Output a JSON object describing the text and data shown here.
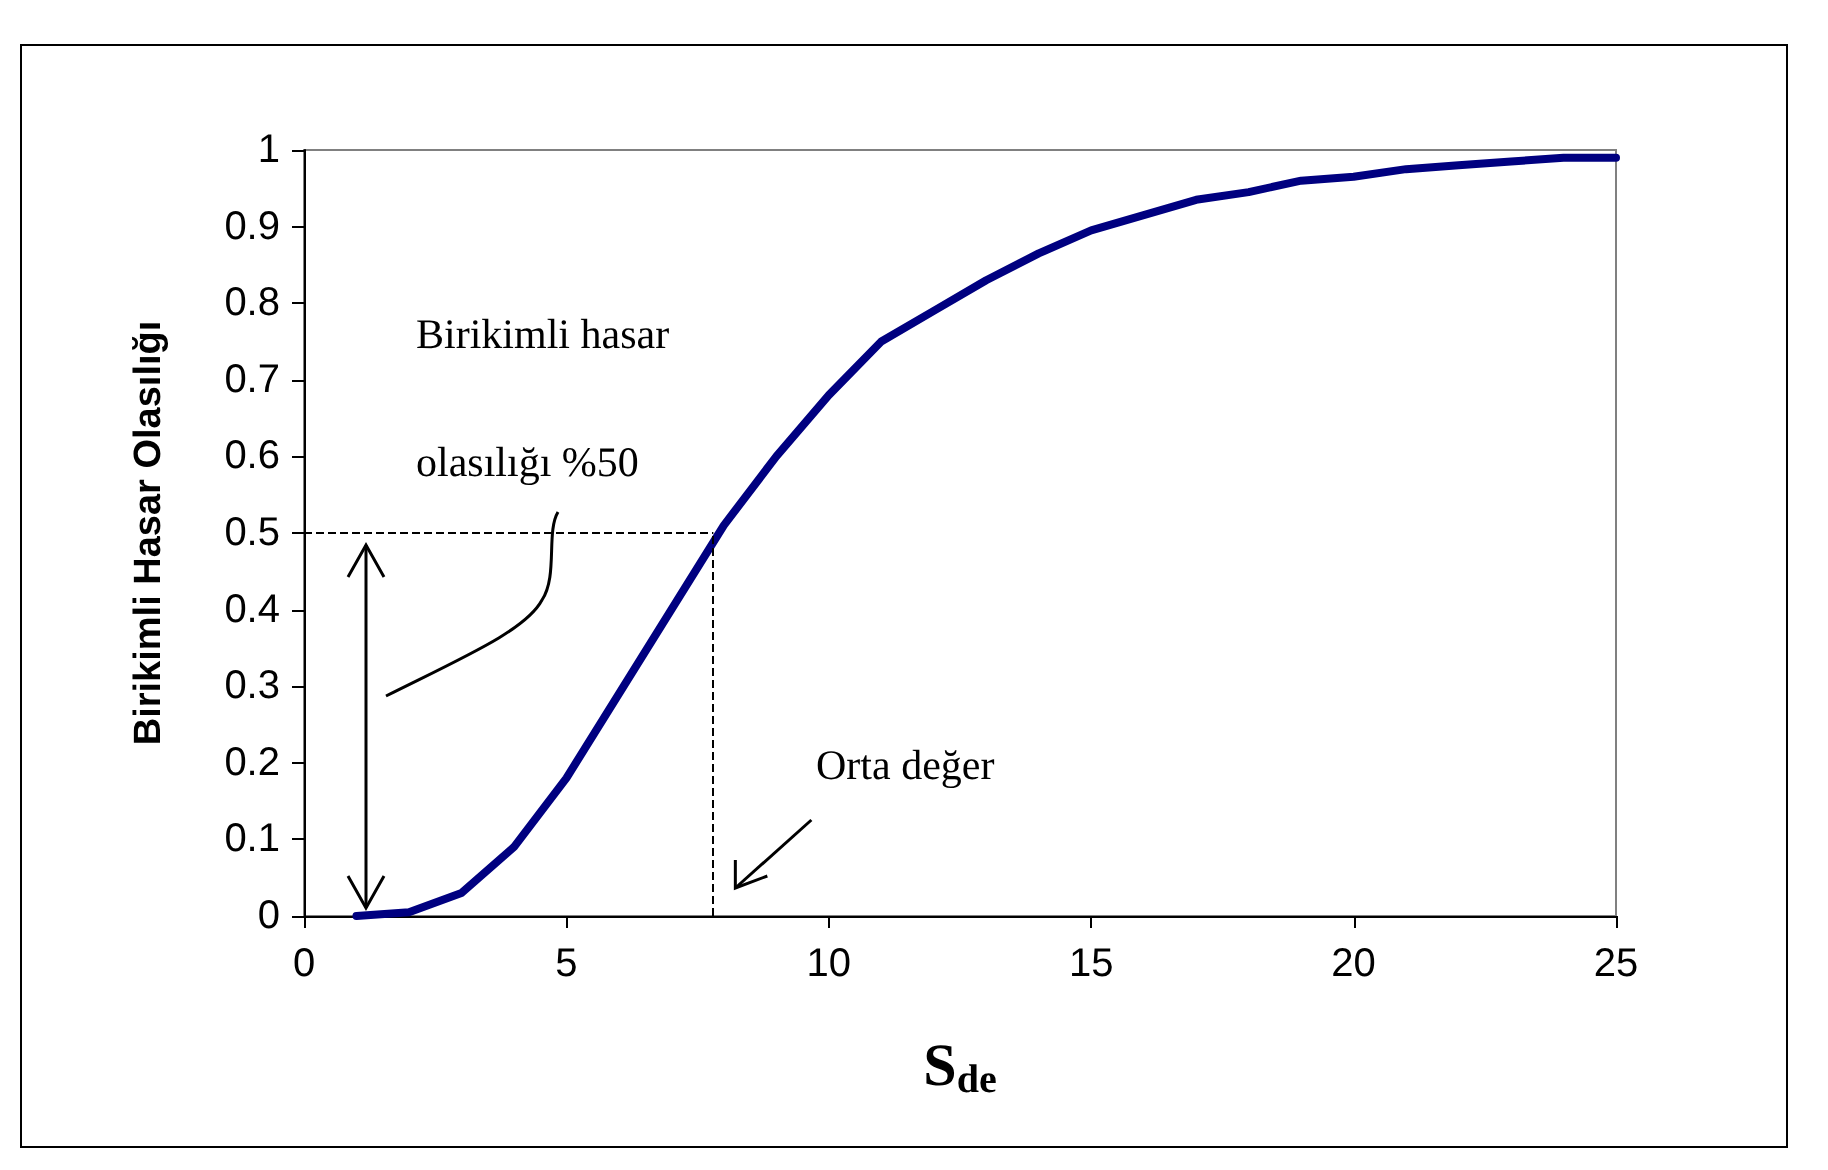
{
  "chart_data": {
    "type": "line",
    "xlabel": "S$_{de}$",
    "ylabel": "Birikimli Hasar Olasılığı",
    "x": [
      1,
      2,
      3,
      4,
      5,
      6,
      7,
      8,
      9,
      10,
      11,
      12,
      13,
      14,
      15,
      16,
      17,
      18,
      19,
      20,
      21,
      22,
      23,
      24,
      25
    ],
    "series": [
      {
        "color": "#000080",
        "values": [
          0,
          0.005,
          0.03,
          0.09,
          0.18,
          0.29,
          0.4,
          0.51,
          0.6,
          0.68,
          0.75,
          0.79,
          0.83,
          0.865,
          0.895,
          0.915,
          0.935,
          0.945,
          0.96,
          0.965,
          0.975,
          0.98,
          0.985,
          0.99,
          0.99
        ]
      }
    ],
    "xlim": [
      0,
      25
    ],
    "xticks": [
      0,
      5,
      10,
      15,
      20,
      25
    ],
    "ylim": [
      0,
      1
    ],
    "yticks": [
      0,
      0.1,
      0.2,
      0.3,
      0.4,
      0.5,
      0.6,
      0.7,
      0.8,
      0.9,
      1
    ],
    "ref_lines": [
      {
        "axis": "y",
        "value": 0.5,
        "color": "#000000",
        "line_style": "dashed"
      },
      {
        "axis": "x",
        "value": 7.8,
        "color": "#000000",
        "line_style": "dashed"
      }
    ],
    "annotations": [
      "Birikimli hasar olasılığı %50",
      "Orta değer"
    ],
    "grid": false,
    "marker": "none",
    "line_style": "solid"
  }
}
